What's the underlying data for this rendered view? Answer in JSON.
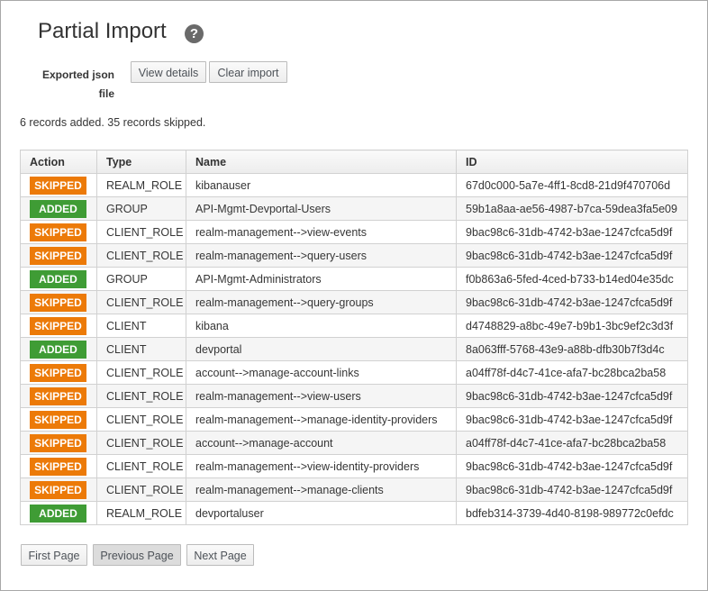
{
  "header": {
    "title": "Partial Import",
    "help_icon": "?"
  },
  "form": {
    "label": "Exported json file",
    "buttons": [
      "View details",
      "Clear import"
    ]
  },
  "summary": "6 records added. 35 records skipped.",
  "table": {
    "columns": [
      "Action",
      "Type",
      "Name",
      "ID"
    ],
    "rows": [
      [
        "SKIPPED",
        "REALM_ROLE",
        "kibanauser",
        "67d0c000-5a7e-4ff1-8cd8-21d9f470706d"
      ],
      [
        "ADDED",
        "GROUP",
        "API-Mgmt-Devportal-Users",
        "59b1a8aa-ae56-4987-b7ca-59dea3fa5e09"
      ],
      [
        "SKIPPED",
        "CLIENT_ROLE",
        "realm-management-->view-events",
        "9bac98c6-31db-4742-b3ae-1247cfca5d9f"
      ],
      [
        "SKIPPED",
        "CLIENT_ROLE",
        "realm-management-->query-users",
        "9bac98c6-31db-4742-b3ae-1247cfca5d9f"
      ],
      [
        "ADDED",
        "GROUP",
        "API-Mgmt-Administrators",
        "f0b863a6-5fed-4ced-b733-b14ed04e35dc"
      ],
      [
        "SKIPPED",
        "CLIENT_ROLE",
        "realm-management-->query-groups",
        "9bac98c6-31db-4742-b3ae-1247cfca5d9f"
      ],
      [
        "SKIPPED",
        "CLIENT",
        "kibana",
        "d4748829-a8bc-49e7-b9b1-3bc9ef2c3d3f"
      ],
      [
        "ADDED",
        "CLIENT",
        "devportal",
        "8a063fff-5768-43e9-a88b-dfb30b7f3d4c"
      ],
      [
        "SKIPPED",
        "CLIENT_ROLE",
        "account-->manage-account-links",
        "a04ff78f-d4c7-41ce-afa7-bc28bca2ba58"
      ],
      [
        "SKIPPED",
        "CLIENT_ROLE",
        "realm-management-->view-users",
        "9bac98c6-31db-4742-b3ae-1247cfca5d9f"
      ],
      [
        "SKIPPED",
        "CLIENT_ROLE",
        "realm-management-->manage-identity-providers",
        "9bac98c6-31db-4742-b3ae-1247cfca5d9f"
      ],
      [
        "SKIPPED",
        "CLIENT_ROLE",
        "account-->manage-account",
        "a04ff78f-d4c7-41ce-afa7-bc28bca2ba58"
      ],
      [
        "SKIPPED",
        "CLIENT_ROLE",
        "realm-management-->view-identity-providers",
        "9bac98c6-31db-4742-b3ae-1247cfca5d9f"
      ],
      [
        "SKIPPED",
        "CLIENT_ROLE",
        "realm-management-->manage-clients",
        "9bac98c6-31db-4742-b3ae-1247cfca5d9f"
      ],
      [
        "ADDED",
        "REALM_ROLE",
        "devportaluser",
        "bdfeb314-3739-4d40-8198-989772c0efdc"
      ]
    ]
  },
  "pagination": [
    "First Page",
    "Previous Page",
    "Next Page"
  ]
}
